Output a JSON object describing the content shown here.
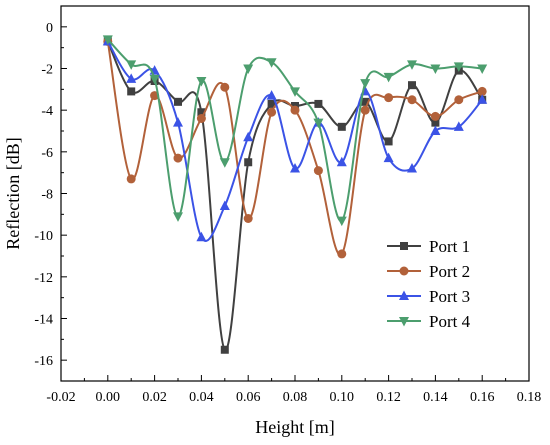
{
  "chart_data": {
    "type": "line",
    "xlabel": "Height  [m]",
    "ylabel": "Reflection [dB]",
    "xlim": [
      -0.02,
      0.18
    ],
    "ylim": [
      -17,
      1
    ],
    "xticks": [
      -0.02,
      0.0,
      0.02,
      0.04,
      0.06,
      0.08,
      0.1,
      0.12,
      0.14,
      0.16,
      0.18
    ],
    "xtick_labels": [
      "-0.02",
      "0.00",
      "0.02",
      "0.04",
      "0.06",
      "0.08",
      "0.10",
      "0.12",
      "0.14",
      "0.16",
      "0.18"
    ],
    "yticks": [
      0,
      -2,
      -4,
      -6,
      -8,
      -10,
      -12,
      -14,
      -16
    ],
    "ytick_labels": [
      "0",
      "-2",
      "-4",
      "-6",
      "-8",
      "-10",
      "-12",
      "-14",
      "-16"
    ],
    "grid": false,
    "legend_position": "right",
    "x": [
      0.0,
      0.01,
      0.02,
      0.03,
      0.04,
      0.05,
      0.06,
      0.07,
      0.08,
      0.09,
      0.1,
      0.11,
      0.12,
      0.13,
      0.14,
      0.15,
      0.16
    ],
    "series": [
      {
        "name": "Port 1",
        "color": "#404040",
        "marker": "square",
        "values": [
          -0.7,
          -3.1,
          -2.6,
          -3.6,
          -4.1,
          -15.5,
          -6.5,
          -3.7,
          -3.8,
          -3.7,
          -4.8,
          -3.6,
          -5.5,
          -2.8,
          -4.6,
          -2.1,
          -3.5
        ]
      },
      {
        "name": "Port 2",
        "color": "#B2613A",
        "marker": "circle",
        "values": [
          -0.7,
          -7.3,
          -3.3,
          -6.3,
          -4.4,
          -2.9,
          -9.2,
          -4.1,
          -4.0,
          -6.9,
          -10.9,
          -4.0,
          -3.4,
          -3.5,
          -4.3,
          -3.5,
          -3.1
        ]
      },
      {
        "name": "Port 3",
        "color": "#3B53E6",
        "marker": "triangle-up",
        "values": [
          -0.7,
          -2.5,
          -2.1,
          -4.6,
          -10.1,
          -8.6,
          -5.3,
          -3.3,
          -6.8,
          -4.6,
          -6.5,
          -3.1,
          -6.3,
          -6.8,
          -5.0,
          -4.8,
          -3.5
        ]
      },
      {
        "name": "Port 4",
        "color": "#4C9E6E",
        "marker": "triangle-down",
        "values": [
          -0.6,
          -1.8,
          -2.5,
          -9.1,
          -2.6,
          -6.5,
          -2.0,
          -1.7,
          -3.1,
          -4.6,
          -9.3,
          -2.7,
          -2.4,
          -1.8,
          -2.0,
          -1.9,
          -2.0
        ]
      }
    ]
  }
}
